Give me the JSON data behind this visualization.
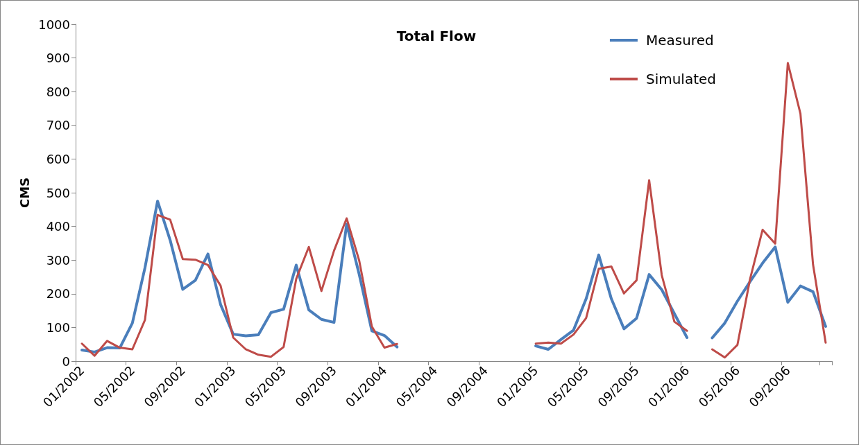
{
  "chart_data": {
    "type": "line",
    "title": "Total Flow",
    "ylabel": "CMS",
    "categories": [
      "01/2002",
      null,
      null,
      null,
      "05/2002",
      null,
      null,
      null,
      "09/2002",
      null,
      null,
      null,
      "01/2003",
      null,
      null,
      null,
      "05/2003",
      null,
      null,
      null,
      "09/2003",
      null,
      null,
      null,
      "01/2004",
      null,
      null,
      null,
      "05/2004",
      null,
      null,
      null,
      "09/2004",
      null,
      null,
      null,
      "01/2005",
      null,
      null,
      null,
      "05/2005",
      null,
      null,
      null,
      "09/2005",
      null,
      null,
      null,
      "01/2006",
      null,
      null,
      null,
      "05/2006",
      null,
      null,
      null,
      "09/2006",
      null,
      null,
      null
    ],
    "series": [
      {
        "name": "Measured",
        "color": "#4a7ebb",
        "values": [
          33,
          27,
          40,
          39,
          113,
          277,
          475,
          359,
          213,
          240,
          318,
          168,
          80,
          75,
          78,
          144,
          154,
          285,
          152,
          124,
          115,
          407,
          257,
          90,
          76,
          42,
          null,
          null,
          null,
          null,
          null,
          null,
          null,
          null,
          null,
          null,
          45,
          35,
          64,
          92,
          185,
          315,
          185,
          96,
          127,
          257,
          212,
          141,
          70,
          null,
          69,
          113,
          178,
          236,
          291,
          339,
          175,
          223,
          206,
          103
        ]
      },
      {
        "name": "Simulated",
        "color": "#be4b48",
        "values": [
          52,
          16,
          60,
          40,
          35,
          122,
          434,
          420,
          303,
          301,
          285,
          224,
          70,
          35,
          19,
          13,
          42,
          244,
          339,
          208,
          328,
          424,
          298,
          103,
          40,
          51,
          null,
          null,
          null,
          null,
          null,
          null,
          null,
          null,
          null,
          null,
          52,
          55,
          52,
          79,
          128,
          274,
          281,
          201,
          240,
          537,
          255,
          117,
          90,
          null,
          35,
          11,
          48,
          243,
          390,
          349,
          885,
          735,
          287,
          55
        ]
      }
    ],
    "ylim": [
      0,
      1000
    ],
    "yticks": [
      0,
      100,
      200,
      300,
      400,
      500,
      600,
      700,
      800,
      900,
      1000
    ],
    "grid": false,
    "legend": "top right",
    "marker": "none",
    "line_style": "solid"
  }
}
